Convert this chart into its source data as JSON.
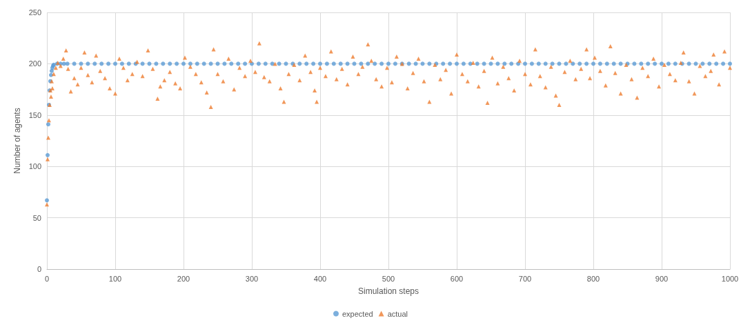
{
  "chart_data": {
    "type": "scatter",
    "xlabel": "Simulation steps",
    "ylabel": "Number of agents",
    "xlim": [
      0,
      1000
    ],
    "xticks": [
      0,
      100,
      200,
      300,
      400,
      500,
      600,
      700,
      800,
      900,
      1000
    ],
    "ylim": [
      0,
      250
    ],
    "yticks": [
      0,
      50,
      100,
      150,
      200,
      250
    ],
    "grid": true,
    "legend": "bottom",
    "series": [
      {
        "name": "expected",
        "color": "#5b9bd5",
        "marker": "circle",
        "x": [
          0,
          1,
          2,
          3,
          4,
          5,
          6,
          7,
          8,
          9,
          10,
          15,
          20,
          25,
          30,
          40,
          50,
          60,
          70,
          80,
          90,
          100,
          110,
          120,
          130,
          140,
          150,
          160,
          170,
          180,
          190,
          200,
          210,
          220,
          230,
          240,
          250,
          260,
          270,
          280,
          290,
          300,
          310,
          320,
          330,
          340,
          350,
          360,
          370,
          380,
          390,
          400,
          410,
          420,
          430,
          440,
          450,
          460,
          470,
          480,
          490,
          500,
          510,
          520,
          530,
          540,
          550,
          560,
          570,
          580,
          590,
          600,
          610,
          620,
          630,
          640,
          650,
          660,
          670,
          680,
          690,
          700,
          710,
          720,
          730,
          740,
          750,
          760,
          770,
          780,
          790,
          800,
          810,
          820,
          830,
          840,
          850,
          860,
          870,
          880,
          890,
          900,
          910,
          920,
          930,
          940,
          950,
          960,
          970,
          980,
          990,
          1000
        ],
        "values": [
          67,
          111,
          141,
          160,
          174,
          183,
          189,
          193,
          196,
          198,
          199,
          200,
          200,
          200,
          200,
          200,
          200,
          200,
          200,
          200,
          200,
          200,
          200,
          200,
          200,
          200,
          200,
          200,
          200,
          200,
          200,
          200,
          200,
          200,
          200,
          200,
          200,
          200,
          200,
          200,
          200,
          200,
          200,
          200,
          200,
          200,
          200,
          200,
          200,
          200,
          200,
          200,
          200,
          200,
          200,
          200,
          200,
          200,
          200,
          200,
          200,
          200,
          200,
          200,
          200,
          200,
          200,
          200,
          200,
          200,
          200,
          200,
          200,
          200,
          200,
          200,
          200,
          200,
          200,
          200,
          200,
          200,
          200,
          200,
          200,
          200,
          200,
          200,
          200,
          200,
          200,
          200,
          200,
          200,
          200,
          200,
          200,
          200,
          200,
          200,
          200,
          200,
          200,
          200,
          200,
          200,
          200,
          200,
          200,
          200,
          200,
          200
        ]
      },
      {
        "name": "actual",
        "color": "#ed7d31",
        "marker": "triangle",
        "x": [
          0,
          1,
          2,
          3,
          4,
          5,
          6,
          7,
          8,
          10,
          13,
          16,
          20,
          24,
          28,
          31,
          35,
          40,
          45,
          50,
          55,
          60,
          66,
          72,
          78,
          85,
          92,
          100,
          106,
          112,
          118,
          125,
          132,
          140,
          148,
          155,
          162,
          166,
          172,
          180,
          188,
          195,
          202,
          210,
          218,
          226,
          234,
          240,
          244,
          250,
          258,
          266,
          274,
          282,
          290,
          298,
          305,
          311,
          318,
          326,
          334,
          342,
          347,
          354,
          362,
          370,
          378,
          386,
          392,
          395,
          400,
          408,
          416,
          424,
          432,
          440,
          448,
          456,
          462,
          470,
          475,
          482,
          490,
          498,
          505,
          512,
          520,
          528,
          536,
          544,
          552,
          560,
          568,
          576,
          584,
          592,
          600,
          608,
          616,
          624,
          632,
          640,
          645,
          652,
          660,
          668,
          676,
          684,
          692,
          700,
          708,
          715,
          722,
          730,
          738,
          745,
          750,
          758,
          766,
          774,
          782,
          790,
          795,
          802,
          810,
          818,
          825,
          832,
          840,
          848,
          856,
          864,
          872,
          880,
          888,
          896,
          904,
          912,
          920,
          928,
          932,
          940,
          948,
          956,
          964,
          972,
          976,
          984,
          992,
          1000
        ],
        "values": [
          63,
          107,
          128,
          145,
          160,
          174,
          168,
          183,
          176,
          190,
          196,
          201,
          198,
          205,
          213,
          195,
          173,
          186,
          180,
          196,
          211,
          189,
          182,
          208,
          193,
          186,
          176,
          171,
          205,
          196,
          184,
          190,
          202,
          188,
          213,
          195,
          166,
          178,
          184,
          192,
          181,
          176,
          206,
          197,
          190,
          182,
          172,
          158,
          214,
          190,
          183,
          205,
          175,
          196,
          188,
          203,
          192,
          220,
          187,
          183,
          200,
          176,
          163,
          190,
          199,
          184,
          208,
          192,
          174,
          163,
          196,
          188,
          212,
          185,
          195,
          180,
          207,
          190,
          197,
          219,
          203,
          185,
          178,
          196,
          182,
          207,
          200,
          176,
          191,
          205,
          183,
          163,
          199,
          185,
          194,
          171,
          209,
          190,
          183,
          201,
          178,
          193,
          162,
          206,
          181,
          197,
          186,
          174,
          203,
          190,
          180,
          214,
          188,
          177,
          197,
          169,
          160,
          192,
          203,
          185,
          195,
          214,
          186,
          206,
          193,
          179,
          217,
          191,
          171,
          199,
          185,
          167,
          196,
          188,
          205,
          178,
          199,
          190,
          184,
          201,
          211,
          183,
          171,
          198,
          188,
          193,
          209,
          180,
          212,
          196
        ]
      }
    ]
  }
}
